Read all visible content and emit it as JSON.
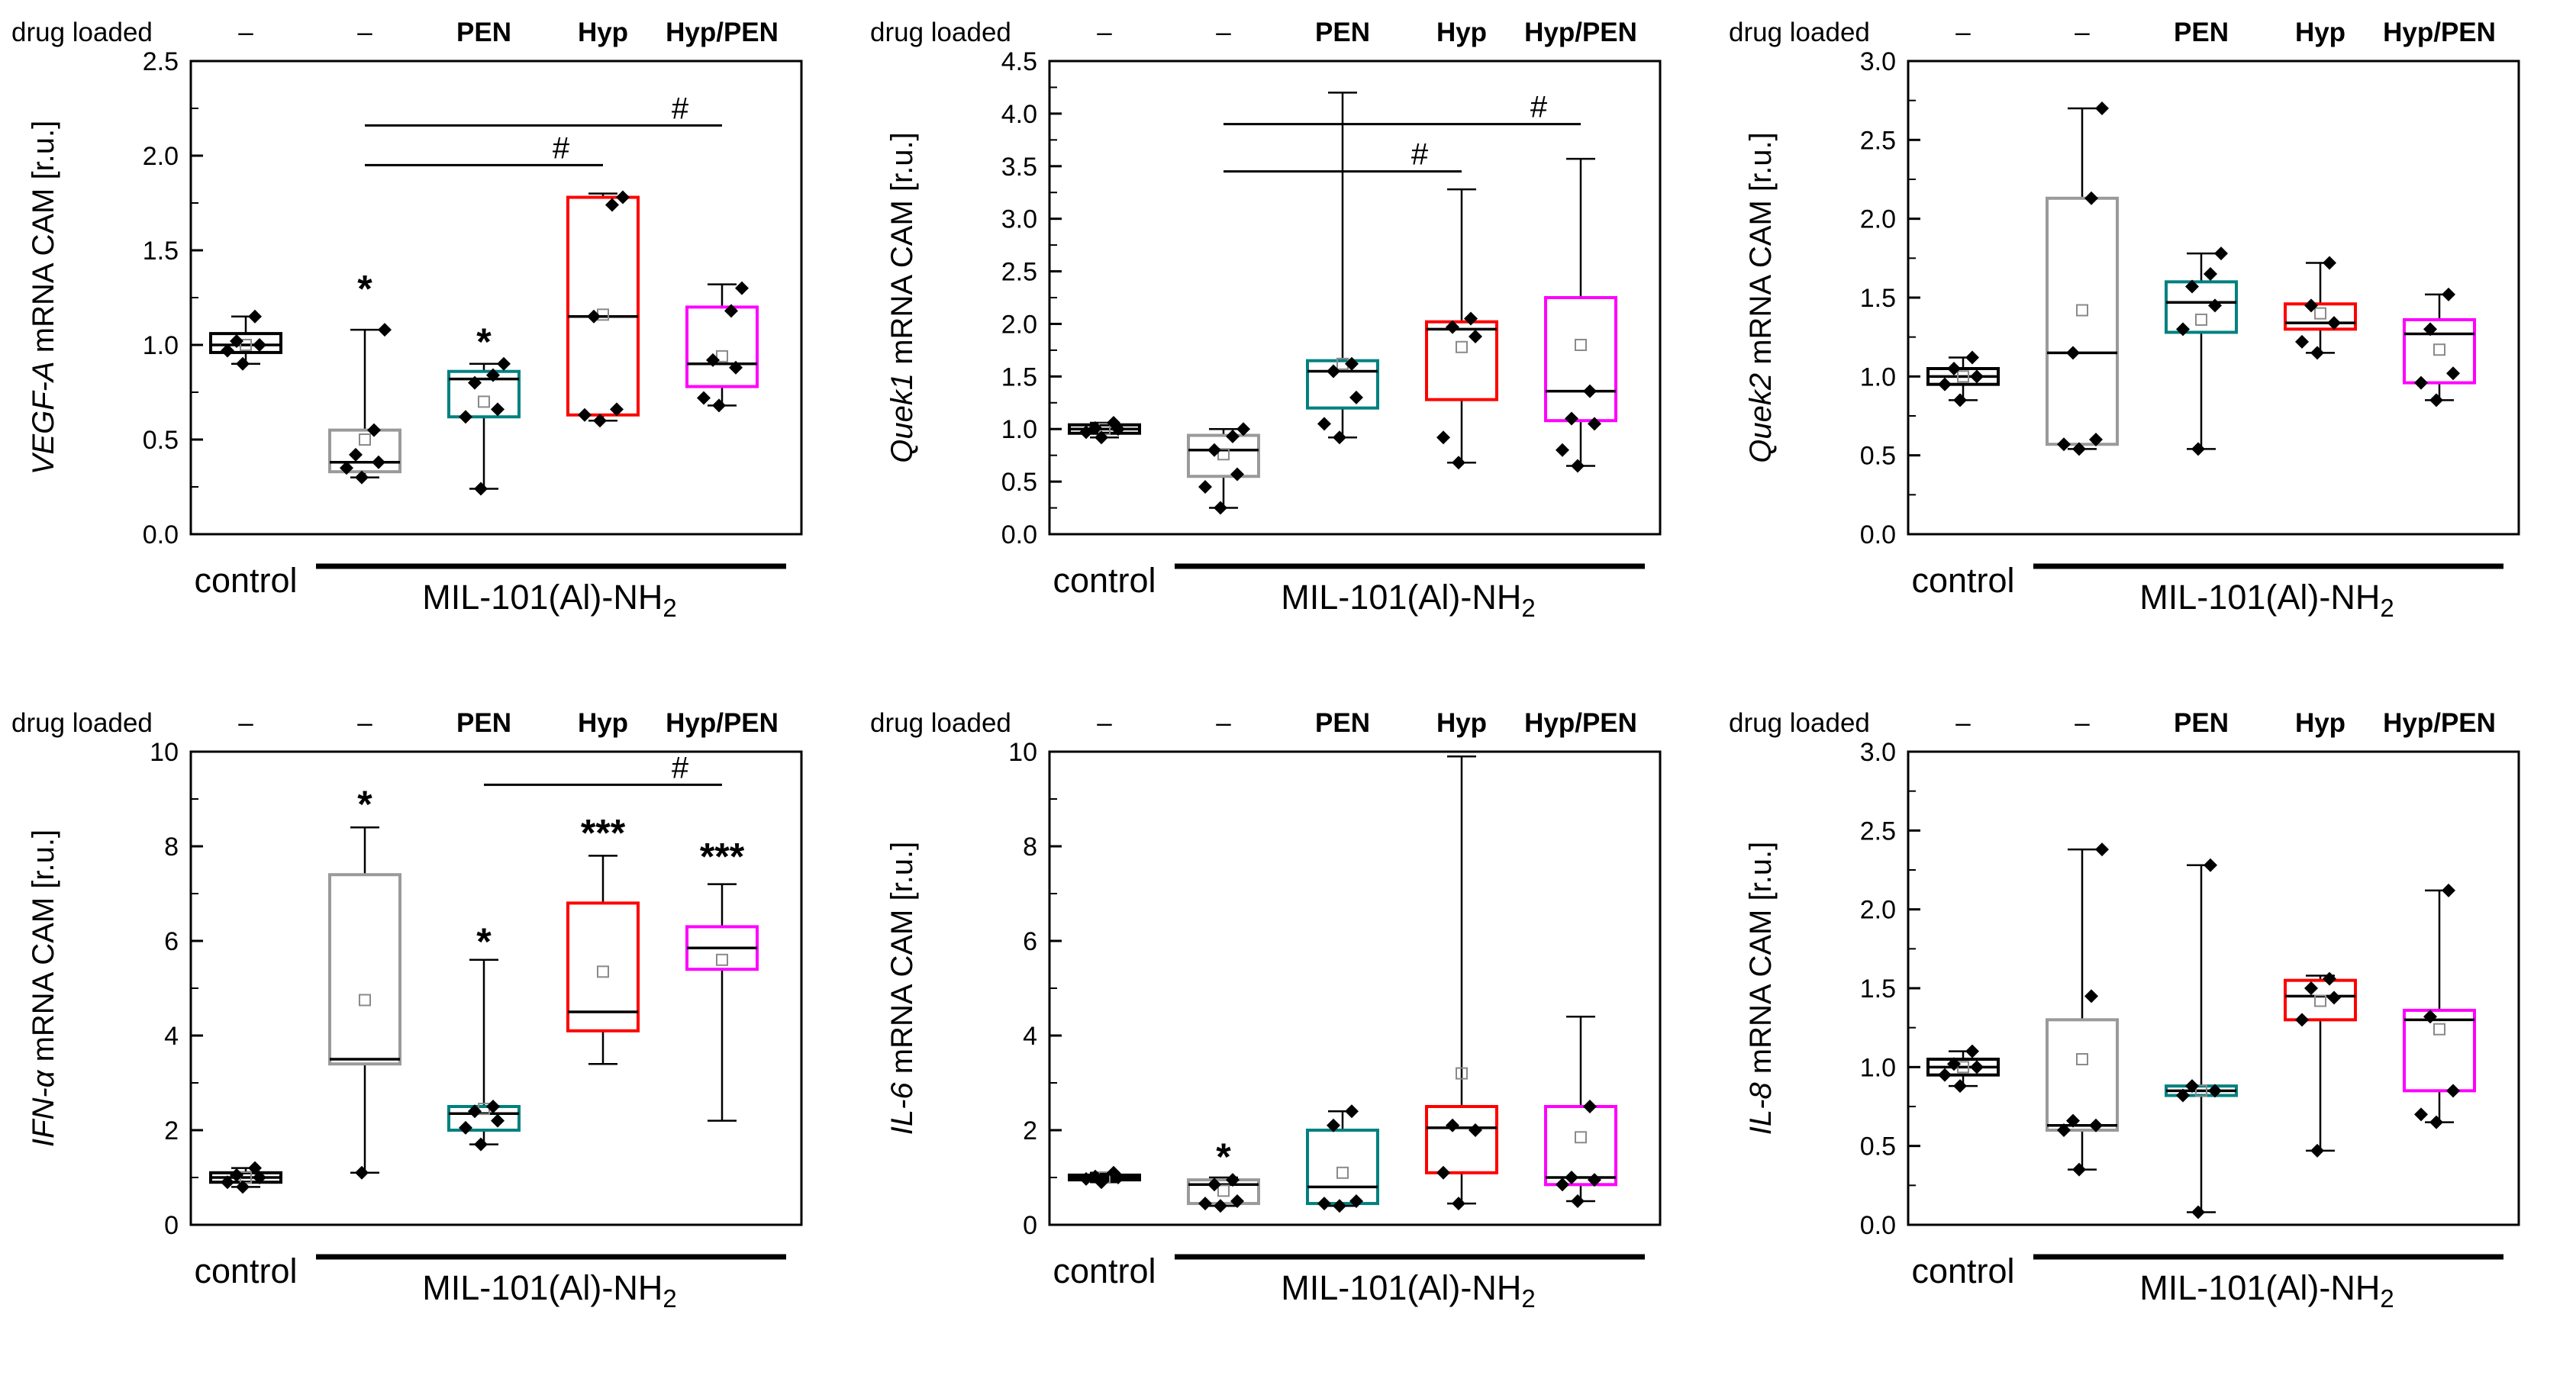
{
  "figure": {
    "header_label": "drug loaded",
    "drug_labels": [
      "–",
      "–",
      "PEN",
      "Hyp",
      "Hyp/PEN"
    ],
    "drug_label_colors": [
      "#000000",
      "#9a9a9a",
      "#008080",
      "#ff0000",
      "#ff00ff"
    ],
    "x_group1_label": "control",
    "x_group2_label": "MIL-101(Al)-NH",
    "x_group2_sub": "2"
  },
  "chart_data": [
    {
      "type": "box",
      "gene": "VEGF-A",
      "ylabel_suffix": " mRNA CAM [r.u.]",
      "ymin": 0.0,
      "ymax": 2.5,
      "ytick": 0.5,
      "decimals": 1,
      "boxes": [
        {
          "name": "control",
          "color": "#000000",
          "q1": 0.96,
          "median": 1.0,
          "q3": 1.06,
          "low": 0.9,
          "high": 1.15,
          "mean": 1.0,
          "points": [
            0.9,
            0.97,
            1.0,
            1.02,
            1.15
          ]
        },
        {
          "name": "untreated",
          "color": "#9a9a9a",
          "q1": 0.33,
          "median": 0.38,
          "q3": 0.55,
          "low": 0.3,
          "high": 1.08,
          "mean": 0.5,
          "points": [
            0.3,
            0.35,
            0.38,
            0.42,
            0.55,
            1.08
          ]
        },
        {
          "name": "PEN",
          "color": "#008080",
          "q1": 0.62,
          "median": 0.82,
          "q3": 0.86,
          "low": 0.24,
          "high": 0.9,
          "mean": 0.7,
          "points": [
            0.24,
            0.62,
            0.66,
            0.8,
            0.84,
            0.9
          ]
        },
        {
          "name": "Hyp",
          "color": "#ff0000",
          "q1": 0.63,
          "median": 1.15,
          "q3": 1.78,
          "low": 0.6,
          "high": 1.8,
          "mean": 1.16,
          "points": [
            0.6,
            0.63,
            0.66,
            1.15,
            1.74,
            1.78
          ]
        },
        {
          "name": "HypPEN",
          "color": "#ff00ff",
          "q1": 0.78,
          "median": 0.9,
          "q3": 1.2,
          "low": 0.68,
          "high": 1.32,
          "mean": 0.94,
          "points": [
            0.68,
            0.72,
            0.88,
            0.92,
            1.18,
            1.3
          ]
        }
      ],
      "stars": [
        {
          "box": 1,
          "label": "*",
          "y": 1.3
        },
        {
          "box": 2,
          "label": "*",
          "y": 1.02
        }
      ],
      "brackets": [
        {
          "from": 1,
          "to": 3,
          "y": 1.95,
          "label": "#"
        },
        {
          "from": 1,
          "to": 4,
          "y": 2.16,
          "label": "#"
        }
      ]
    },
    {
      "type": "box",
      "gene": "Quek1",
      "ylabel_suffix": " mRNA CAM [r.u.]",
      "ymin": 0.0,
      "ymax": 4.5,
      "ytick": 0.5,
      "decimals": 1,
      "boxes": [
        {
          "name": "control",
          "color": "#000000",
          "q1": 0.96,
          "median": 1.0,
          "q3": 1.04,
          "low": 0.92,
          "high": 1.06,
          "mean": 1.0,
          "points": [
            0.92,
            0.97,
            1.0,
            1.01,
            1.06
          ]
        },
        {
          "name": "untreated",
          "color": "#9a9a9a",
          "q1": 0.55,
          "median": 0.8,
          "q3": 0.94,
          "low": 0.25,
          "high": 1.0,
          "mean": 0.76,
          "points": [
            0.25,
            0.45,
            0.57,
            0.8,
            0.93,
            1.0
          ]
        },
        {
          "name": "PEN",
          "color": "#008080",
          "q1": 1.2,
          "median": 1.55,
          "q3": 1.65,
          "low": 0.92,
          "high": 4.2,
          "mean": 1.62,
          "points": [
            0.92,
            1.05,
            1.3,
            1.55,
            1.62
          ]
        },
        {
          "name": "Hyp",
          "color": "#ff0000",
          "q1": 1.28,
          "median": 1.95,
          "q3": 2.02,
          "low": 0.68,
          "high": 3.28,
          "mean": 1.78,
          "points": [
            0.68,
            0.92,
            1.88,
            1.97,
            2.05
          ]
        },
        {
          "name": "HypPEN",
          "color": "#ff00ff",
          "q1": 1.08,
          "median": 1.36,
          "q3": 2.25,
          "low": 0.65,
          "high": 3.57,
          "mean": 1.8,
          "points": [
            0.65,
            0.8,
            1.05,
            1.1,
            1.36
          ]
        }
      ],
      "stars": [],
      "brackets": [
        {
          "from": 1,
          "to": 3,
          "y": 3.45,
          "label": "#"
        },
        {
          "from": 1,
          "to": 4,
          "y": 3.9,
          "label": "#"
        }
      ]
    },
    {
      "type": "box",
      "gene": "Quek2",
      "ylabel_suffix": " mRNA CAM [r.u.]",
      "ymin": 0.0,
      "ymax": 3.0,
      "ytick": 0.5,
      "decimals": 1,
      "boxes": [
        {
          "name": "control",
          "color": "#000000",
          "q1": 0.95,
          "median": 1.0,
          "q3": 1.05,
          "low": 0.85,
          "high": 1.12,
          "mean": 1.0,
          "points": [
            0.85,
            0.95,
            1.0,
            1.05,
            1.12
          ]
        },
        {
          "name": "untreated",
          "color": "#9a9a9a",
          "q1": 0.57,
          "median": 1.15,
          "q3": 2.13,
          "low": 0.54,
          "high": 2.7,
          "mean": 1.42,
          "points": [
            0.54,
            0.57,
            0.6,
            1.15,
            2.13,
            2.7
          ]
        },
        {
          "name": "PEN",
          "color": "#008080",
          "q1": 1.28,
          "median": 1.47,
          "q3": 1.6,
          "low": 0.54,
          "high": 1.78,
          "mean": 1.36,
          "points": [
            0.54,
            1.3,
            1.45,
            1.57,
            1.65,
            1.78
          ]
        },
        {
          "name": "Hyp",
          "color": "#ff0000",
          "q1": 1.3,
          "median": 1.34,
          "q3": 1.46,
          "low": 1.15,
          "high": 1.72,
          "mean": 1.4,
          "points": [
            1.15,
            1.22,
            1.34,
            1.45,
            1.72
          ]
        },
        {
          "name": "HypPEN",
          "color": "#ff00ff",
          "q1": 0.96,
          "median": 1.27,
          "q3": 1.36,
          "low": 0.85,
          "high": 1.52,
          "mean": 1.17,
          "points": [
            0.85,
            0.96,
            1.02,
            1.3,
            1.52
          ]
        }
      ],
      "stars": [],
      "brackets": []
    },
    {
      "type": "box",
      "gene": "IFN-α",
      "ylabel_suffix": " mRNA CAM [r.u.]",
      "ymin": 0,
      "ymax": 10,
      "ytick": 2,
      "decimals": 0,
      "boxes": [
        {
          "name": "control",
          "color": "#000000",
          "q1": 0.9,
          "median": 1.0,
          "q3": 1.1,
          "low": 0.8,
          "high": 1.2,
          "mean": 1.0,
          "points": [
            0.8,
            0.9,
            1.0,
            1.05,
            1.2
          ]
        },
        {
          "name": "untreated",
          "color": "#9a9a9a",
          "q1": 3.4,
          "median": 3.5,
          "q3": 7.4,
          "low": 1.1,
          "high": 8.4,
          "mean": 4.75,
          "points": [
            1.1
          ]
        },
        {
          "name": "PEN",
          "color": "#008080",
          "q1": 2.0,
          "median": 2.35,
          "q3": 2.5,
          "low": 1.7,
          "high": 5.6,
          "mean": 2.45,
          "points": [
            1.7,
            2.05,
            2.2,
            2.4,
            2.5
          ]
        },
        {
          "name": "Hyp",
          "color": "#ff0000",
          "q1": 4.1,
          "median": 4.5,
          "q3": 6.8,
          "low": 3.4,
          "high": 7.8,
          "mean": 5.35,
          "points": []
        },
        {
          "name": "HypPEN",
          "color": "#ff00ff",
          "q1": 5.4,
          "median": 5.85,
          "q3": 6.3,
          "low": 2.2,
          "high": 7.2,
          "mean": 5.6,
          "points": []
        }
      ],
      "stars": [
        {
          "box": 1,
          "label": "*",
          "y": 8.9
        },
        {
          "box": 2,
          "label": "*",
          "y": 6.0
        },
        {
          "box": 3,
          "label": "***",
          "y": 8.3
        },
        {
          "box": 4,
          "label": "***",
          "y": 7.8
        }
      ],
      "brackets": [
        {
          "from": 2,
          "to": 4,
          "y": 9.3,
          "label": "#"
        }
      ]
    },
    {
      "type": "box",
      "gene": "IL-6",
      "ylabel_suffix": " mRNA CAM [r.u.]",
      "ymin": 0,
      "ymax": 10,
      "ytick": 2,
      "decimals": 0,
      "boxes": [
        {
          "name": "control",
          "color": "#000000",
          "q1": 0.95,
          "median": 1.0,
          "q3": 1.05,
          "low": 0.9,
          "high": 1.1,
          "mean": 1.0,
          "points": [
            0.9,
            0.97,
            1.0,
            1.02,
            1.1
          ]
        },
        {
          "name": "untreated",
          "color": "#9a9a9a",
          "q1": 0.45,
          "median": 0.85,
          "q3": 0.95,
          "low": 0.4,
          "high": 1.0,
          "mean": 0.72,
          "points": [
            0.4,
            0.45,
            0.5,
            0.85,
            0.95
          ]
        },
        {
          "name": "PEN",
          "color": "#008080",
          "q1": 0.45,
          "median": 0.8,
          "q3": 2.0,
          "low": 0.4,
          "high": 2.4,
          "mean": 1.1,
          "points": [
            0.4,
            0.45,
            0.5,
            2.1,
            2.4
          ]
        },
        {
          "name": "Hyp",
          "color": "#ff0000",
          "q1": 1.1,
          "median": 2.05,
          "q3": 2.5,
          "low": 0.45,
          "high": 9.9,
          "mean": 3.2,
          "points": [
            0.45,
            1.1,
            2.0,
            2.1
          ]
        },
        {
          "name": "HypPEN",
          "color": "#ff00ff",
          "q1": 0.85,
          "median": 1.0,
          "q3": 2.5,
          "low": 0.5,
          "high": 4.4,
          "mean": 1.85,
          "points": [
            0.5,
            0.85,
            0.95,
            1.0,
            2.5
          ]
        }
      ],
      "stars": [
        {
          "box": 1,
          "label": "*",
          "y": 1.45
        }
      ],
      "brackets": []
    },
    {
      "type": "box",
      "gene": "IL-8",
      "ylabel_suffix": " mRNA CAM [r.u.]",
      "ymin": 0.0,
      "ymax": 3.0,
      "ytick": 0.5,
      "decimals": 1,
      "boxes": [
        {
          "name": "control",
          "color": "#000000",
          "q1": 0.95,
          "median": 1.0,
          "q3": 1.05,
          "low": 0.88,
          "high": 1.1,
          "mean": 1.0,
          "points": [
            0.88,
            0.95,
            1.0,
            1.02,
            1.1
          ]
        },
        {
          "name": "untreated",
          "color": "#9a9a9a",
          "q1": 0.6,
          "median": 0.63,
          "q3": 1.3,
          "low": 0.35,
          "high": 2.38,
          "mean": 1.05,
          "points": [
            0.35,
            0.6,
            0.63,
            0.66,
            1.45,
            2.38
          ]
        },
        {
          "name": "PEN",
          "color": "#008080",
          "q1": 0.82,
          "median": 0.85,
          "q3": 0.88,
          "low": 0.08,
          "high": 2.28,
          "mean": 0.85,
          "points": [
            0.08,
            0.82,
            0.85,
            0.88,
            2.28
          ]
        },
        {
          "name": "Hyp",
          "color": "#ff0000",
          "q1": 1.3,
          "median": 1.45,
          "q3": 1.55,
          "low": 0.47,
          "high": 1.58,
          "mean": 1.42,
          "points": [
            0.47,
            1.3,
            1.44,
            1.5,
            1.56
          ]
        },
        {
          "name": "HypPEN",
          "color": "#ff00ff",
          "q1": 0.85,
          "median": 1.3,
          "q3": 1.36,
          "low": 0.65,
          "high": 2.12,
          "mean": 1.24,
          "points": [
            0.65,
            0.7,
            0.85,
            1.32,
            2.12
          ]
        }
      ],
      "stars": [],
      "brackets": []
    }
  ]
}
